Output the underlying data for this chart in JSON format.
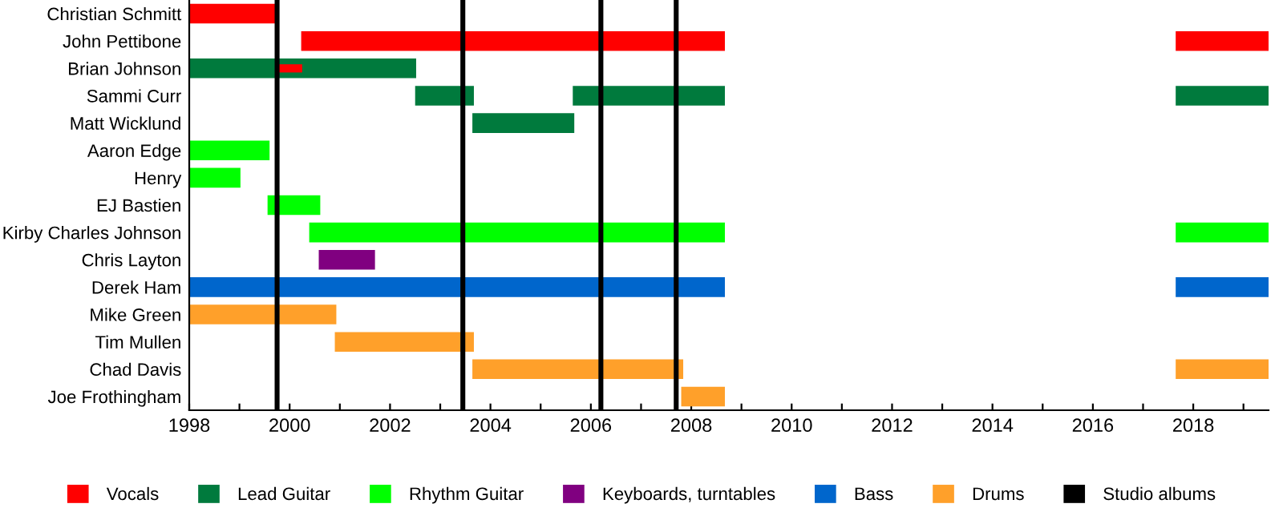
{
  "chart_data": {
    "type": "bar",
    "orientation": "horizontal",
    "categories": [
      "Christian Schmitt",
      "John Pettibone",
      "Brian Johnson",
      "Sammi Curr",
      "Matt Wicklund",
      "Aaron Edge",
      "Henry",
      "EJ Bastien",
      "Kirby Charles Johnson",
      "Chris Layton",
      "Derek Ham",
      "Mike Green",
      "Tim Mullen",
      "Chad Davis",
      "Joe Frothingham"
    ],
    "series": [
      {
        "name": "Vocals",
        "color": "#ff0000",
        "values": [
          1.75,
          8.44,
          0.5,
          null,
          null,
          null,
          null,
          null,
          null,
          null,
          null,
          null,
          null,
          null,
          null
        ],
        "base": [
          1998,
          2000.23,
          1999.75,
          null,
          null,
          null,
          null,
          null,
          null,
          null,
          null,
          null,
          null,
          null,
          null
        ]
      },
      {
        "color": "#ff0000",
        "values": [
          null,
          1.85,
          null,
          null,
          null,
          null,
          null,
          null,
          null,
          null,
          null,
          null,
          null,
          null,
          null
        ],
        "base": [
          null,
          2017.65,
          null,
          null,
          null,
          null,
          null,
          null,
          null,
          null,
          null,
          null,
          null,
          null,
          null
        ]
      },
      {
        "name": "Lead Guitar",
        "color": "#007a3d",
        "values": [
          null,
          null,
          4.52,
          1.17,
          2.03,
          null,
          null,
          null,
          null,
          null,
          null,
          null,
          null,
          null,
          null
        ],
        "base": [
          null,
          null,
          1998,
          2002.5,
          2003.64,
          null,
          null,
          null,
          null,
          null,
          null,
          null,
          null,
          null,
          null
        ]
      },
      {
        "color": "#007a3d",
        "values": [
          null,
          null,
          null,
          3.03,
          null,
          null,
          null,
          null,
          null,
          null,
          null,
          null,
          null,
          null,
          null
        ],
        "base": [
          null,
          null,
          null,
          2005.64,
          null,
          null,
          null,
          null,
          null,
          null,
          null,
          null,
          null,
          null,
          null
        ]
      },
      {
        "color": "#007a3d",
        "values": [
          null,
          null,
          null,
          1.85,
          null,
          null,
          null,
          null,
          null,
          null,
          null,
          null,
          null,
          null,
          null
        ],
        "base": [
          null,
          null,
          null,
          2017.65,
          null,
          null,
          null,
          null,
          null,
          null,
          null,
          null,
          null,
          null,
          null
        ]
      },
      {
        "name": "Rhythm Guitar",
        "color": "#00ff00",
        "values": [
          null,
          null,
          null,
          null,
          null,
          1.6,
          1.02,
          1.05,
          8.28,
          null,
          null,
          null,
          null,
          null,
          null
        ],
        "base": [
          null,
          null,
          null,
          null,
          null,
          1998,
          1998,
          1999.56,
          2000.39,
          null,
          null,
          null,
          null,
          null,
          null
        ]
      },
      {
        "color": "#00ff00",
        "values": [
          null,
          null,
          null,
          null,
          null,
          null,
          null,
          null,
          1.85,
          null,
          null,
          null,
          null,
          null,
          null
        ],
        "base": [
          null,
          null,
          null,
          null,
          null,
          null,
          null,
          null,
          2017.65,
          null,
          null,
          null,
          null,
          null,
          null
        ]
      },
      {
        "name": "Keyboards, turntables",
        "color": "#800080",
        "values": [
          null,
          null,
          null,
          null,
          null,
          null,
          null,
          null,
          null,
          1.12,
          null,
          null,
          null,
          null,
          null
        ],
        "base": [
          null,
          null,
          null,
          null,
          null,
          null,
          null,
          null,
          null,
          2000.58,
          null,
          null,
          null,
          null,
          null
        ]
      },
      {
        "name": "Bass",
        "color": "#0066cc",
        "values": [
          null,
          null,
          null,
          null,
          null,
          null,
          null,
          null,
          null,
          null,
          10.67,
          null,
          null,
          null,
          null
        ],
        "base": [
          null,
          null,
          null,
          null,
          null,
          null,
          null,
          null,
          null,
          null,
          1998,
          null,
          null,
          null,
          null
        ]
      },
      {
        "color": "#0066cc",
        "values": [
          null,
          null,
          null,
          null,
          null,
          null,
          null,
          null,
          null,
          null,
          1.85,
          null,
          null,
          null,
          null
        ],
        "base": [
          null,
          null,
          null,
          null,
          null,
          null,
          null,
          null,
          null,
          null,
          2017.65,
          null,
          null,
          null,
          null
        ]
      },
      {
        "name": "Drums",
        "color": "#ffa02a",
        "values": [
          null,
          null,
          null,
          null,
          null,
          null,
          null,
          null,
          null,
          null,
          null,
          2.93,
          2.77,
          4.2,
          0.87
        ],
        "base": [
          null,
          null,
          null,
          null,
          null,
          null,
          null,
          null,
          null,
          null,
          null,
          1998,
          2000.9,
          2003.64,
          2007.8
        ]
      },
      {
        "color": "#ffa02a",
        "values": [
          null,
          null,
          null,
          null,
          null,
          null,
          null,
          null,
          null,
          null,
          null,
          null,
          null,
          1.85,
          null
        ],
        "base": [
          null,
          null,
          null,
          null,
          null,
          null,
          null,
          null,
          null,
          null,
          null,
          null,
          null,
          2017.65,
          null
        ]
      }
    ],
    "ref_lines": [
      {
        "axis": "x",
        "value": 1999.75,
        "label": "Studio albums",
        "color": "#000000"
      },
      {
        "axis": "x",
        "value": 2003.45,
        "color": "#000000"
      },
      {
        "axis": "x",
        "value": 2006.2,
        "color": "#000000"
      },
      {
        "axis": "x",
        "value": 2007.7,
        "color": "#000000"
      }
    ],
    "xlim": [
      1998,
      2019.5
    ],
    "xticks": [
      1998,
      {
        "value": 1999,
        "label": null
      },
      2000,
      {
        "value": 2001,
        "label": null
      },
      2002,
      {
        "value": 2003,
        "label": null
      },
      2004,
      {
        "value": 2005,
        "label": null
      },
      2006,
      {
        "value": 2007,
        "label": null
      },
      2008,
      {
        "value": 2009,
        "label": null
      },
      2010,
      {
        "value": 2011,
        "label": null
      },
      2012,
      {
        "value": 2013,
        "label": null
      },
      2014,
      {
        "value": 2015,
        "label": null
      },
      2016,
      {
        "value": 2017,
        "label": null
      },
      2018,
      {
        "value": 2019,
        "label": null
      }
    ],
    "grid": false,
    "legend": "bottom"
  }
}
